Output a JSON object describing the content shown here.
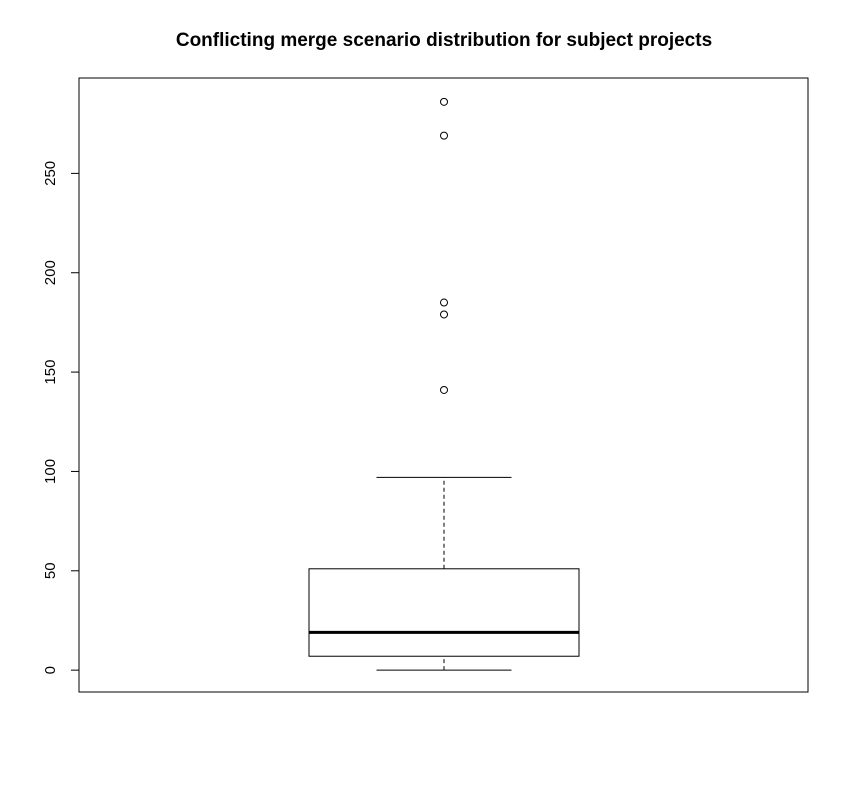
{
  "chart_data": {
    "type": "box",
    "title": "Conflicting merge scenario distribution for subject projects",
    "xlabel": "",
    "ylabel": "",
    "ylim": [
      -11,
      298
    ],
    "yticks": [
      0,
      50,
      100,
      150,
      200,
      250
    ],
    "box": {
      "min": 0,
      "q1": 7,
      "median": 19,
      "q3": 51,
      "max": 97,
      "outliers": [
        141,
        179,
        185,
        269,
        286
      ]
    }
  }
}
